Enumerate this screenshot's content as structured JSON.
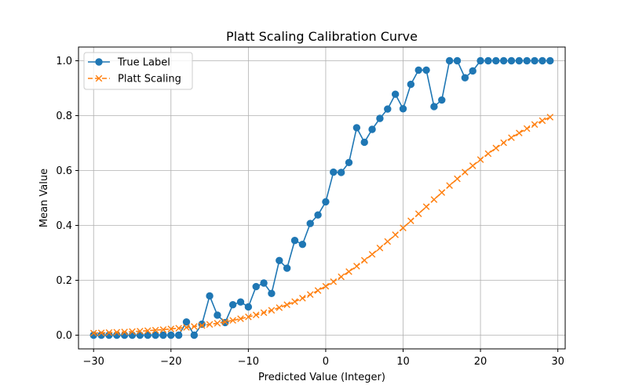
{
  "chart_data": {
    "type": "line",
    "title": "Platt Scaling Calibration Curve",
    "xlabel": "Predicted Value (Integer)",
    "ylabel": "Mean Value",
    "xlim": [
      -31.95,
      30.95
    ],
    "ylim": [
      -0.05,
      1.05
    ],
    "xticks": [
      -30,
      -20,
      -10,
      0,
      10,
      20,
      30
    ],
    "yticks": [
      0.0,
      0.2,
      0.4,
      0.6,
      0.8,
      1.0
    ],
    "xtick_labels": [
      "−30",
      "−20",
      "−10",
      "0",
      "10",
      "20",
      "30"
    ],
    "ytick_labels": [
      "0.0",
      "0.2",
      "0.4",
      "0.6",
      "0.8",
      "1.0"
    ],
    "grid": true,
    "legend": "top-left",
    "x": [
      -30,
      -29,
      -28,
      -27,
      -26,
      -25,
      -24,
      -23,
      -22,
      -21,
      -20,
      -19,
      -18,
      -17,
      -16,
      -15,
      -14,
      -13,
      -12,
      -11,
      -10,
      -9,
      -8,
      -7,
      -6,
      -5,
      -4,
      -3,
      -2,
      -1,
      0,
      1,
      2,
      3,
      4,
      5,
      6,
      7,
      8,
      9,
      10,
      11,
      12,
      13,
      14,
      15,
      16,
      17,
      18,
      19,
      20,
      21,
      22,
      23,
      24,
      25,
      26,
      27,
      28,
      29
    ],
    "series": [
      {
        "name": "True Label",
        "color": "#1f77b4",
        "linestyle": "solid",
        "marker": "circle",
        "values": [
          0.0,
          0.0,
          0.0,
          0.0,
          0.0,
          0.0,
          0.0,
          0.0,
          0.0,
          0.0,
          0.0,
          0.0,
          0.048,
          0.0,
          0.04,
          0.143,
          0.073,
          0.046,
          0.111,
          0.121,
          0.103,
          0.177,
          0.19,
          0.152,
          0.272,
          0.244,
          0.345,
          0.331,
          0.407,
          0.438,
          0.486,
          0.594,
          0.593,
          0.629,
          0.756,
          0.703,
          0.75,
          0.79,
          0.824,
          0.878,
          0.825,
          0.914,
          0.966,
          0.966,
          0.833,
          0.857,
          1.0,
          1.0,
          0.938,
          0.963,
          1.0,
          1.0,
          1.0,
          1.0,
          1.0,
          1.0,
          1.0,
          1.0,
          1.0,
          1.0
        ]
      },
      {
        "name": "Platt Scaling",
        "color": "#ff7f0e",
        "linestyle": "dashed",
        "marker": "x",
        "values": [
          0.0075,
          0.0083,
          0.0094,
          0.0105,
          0.0117,
          0.0131,
          0.0146,
          0.0163,
          0.0182,
          0.0203,
          0.0227,
          0.0253,
          0.0282,
          0.0315,
          0.0351,
          0.0391,
          0.0435,
          0.0485,
          0.0539,
          0.0599,
          0.0666,
          0.0738,
          0.0819,
          0.0906,
          0.1003,
          0.1108,
          0.1222,
          0.1347,
          0.1481,
          0.1626,
          0.1782,
          0.1949,
          0.2127,
          0.2316,
          0.2516,
          0.2726,
          0.2946,
          0.3176,
          0.3414,
          0.3659,
          0.3909,
          0.4165,
          0.4423,
          0.4682,
          0.4941,
          0.5198,
          0.5451,
          0.5699,
          0.594,
          0.6174,
          0.6399,
          0.6614,
          0.6819,
          0.7013,
          0.7196,
          0.7368,
          0.7529,
          0.7678,
          0.7817,
          0.7944
        ]
      }
    ]
  }
}
